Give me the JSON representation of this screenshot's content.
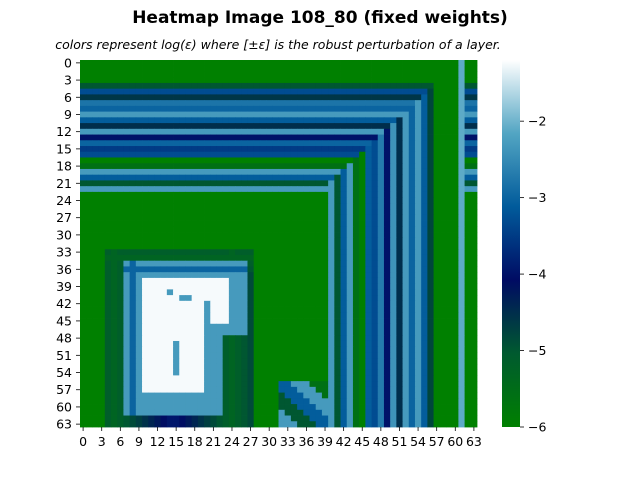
{
  "chart_data": {
    "type": "heatmap",
    "title": "Heatmap Image 108_80 (fixed weights)",
    "subtitle": "colors represent log(ε) where [±ε] is the robust perturbation of a layer.",
    "xlabel": "",
    "ylabel": "",
    "rows": 64,
    "cols": 64,
    "x_tick_labels": [
      "0",
      "3",
      "6",
      "9",
      "12",
      "15",
      "18",
      "21",
      "24",
      "27",
      "30",
      "33",
      "36",
      "39",
      "42",
      "45",
      "48",
      "51",
      "54",
      "57",
      "60",
      "63"
    ],
    "y_tick_labels": [
      "0",
      "3",
      "6",
      "9",
      "12",
      "15",
      "18",
      "21",
      "24",
      "27",
      "30",
      "33",
      "36",
      "39",
      "42",
      "45",
      "48",
      "51",
      "54",
      "57",
      "60",
      "63"
    ],
    "value_range": [
      -6.0,
      -1.2
    ],
    "colorbar_ticks": [
      "−2",
      "−3",
      "−4",
      "−5",
      "−6"
    ],
    "colorbar_tick_values": [
      -2,
      -3,
      -4,
      -5,
      -6
    ],
    "colormap": "ocean",
    "colorscale": [
      "#008000",
      "#005a2f",
      "#000b63",
      "#015b9b",
      "#52a5c3",
      "#ffffff"
    ],
    "description": "L-shaped nested bands: right columns ~55-63 and top rows ~0-24 alternate between green (-6) and blue bands (-2 to -5); inner region of green with a shape-like blob around rows 33-63, columns 4-27 ranging from dark (-5.5) through cyan (-2.5) to white (-1.2)."
  }
}
